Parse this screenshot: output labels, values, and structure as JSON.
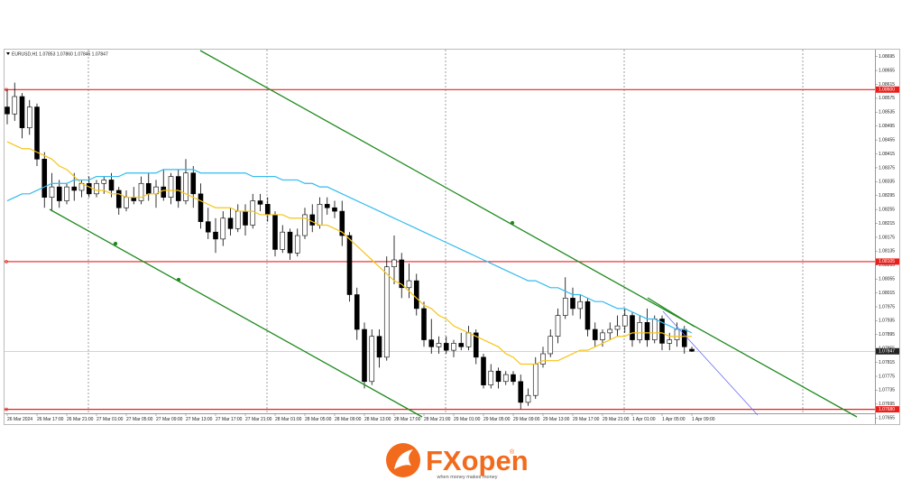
{
  "chart_data": {
    "type": "candlestick",
    "title": "EURUSD,H1  1.07853 1.07860 1.07845 1.07847",
    "categories": [
      "26 Mar 2024",
      null,
      null,
      null,
      "26 Mar 17:00",
      null,
      null,
      null,
      "26 Mar 21:00",
      null,
      null,
      null,
      "27 Mar 01:00",
      null,
      null,
      null,
      "27 Mar 05:00",
      null,
      null,
      null,
      "27 Mar 09:00",
      null,
      null,
      null,
      "27 Mar 13:00",
      null,
      null,
      null,
      "27 Mar 17:00",
      null,
      null,
      null,
      "27 Mar 21:00",
      null,
      null,
      null,
      "28 Mar 01:00",
      null,
      null,
      null,
      "28 Mar 05:00",
      null,
      null,
      null,
      "28 Mar 09:00",
      null,
      null,
      null,
      "28 Mar 13:00",
      null,
      null,
      null,
      "28 Mar 17:00",
      null,
      null,
      null,
      "28 Mar 21:00",
      null,
      null,
      null,
      "29 Mar 01:00",
      null,
      null,
      null,
      "29 Mar 05:00",
      null,
      null,
      null,
      "29 Mar 09:00",
      null,
      null,
      null,
      "29 Mar 13:00",
      null,
      null,
      null,
      "29 Mar 17:00",
      null,
      null,
      null,
      "29 Mar 21:00",
      null,
      null,
      null,
      "1 Apr 01:00",
      null,
      null,
      null,
      "1 Apr 05:00",
      null,
      null,
      null,
      "1 Apr 09:00"
    ],
    "open": [
      1.0855,
      1.0853,
      1.0858,
      1.0849,
      1.0855,
      1.084,
      1.0829,
      1.0832,
      1.0828,
      1.0832,
      1.0831,
      1.0833,
      1.083,
      1.0833,
      1.0834,
      1.0831,
      1.0826,
      1.0829,
      1.0828,
      1.0833,
      1.083,
      1.0832,
      1.0829,
      1.0835,
      1.0828,
      1.0836,
      1.083,
      1.0822,
      1.0819,
      1.0817,
      1.0823,
      1.082,
      1.0825,
      1.0821,
      1.0828,
      1.0827,
      1.0824,
      1.0814,
      1.0819,
      1.0813,
      1.0818,
      1.0824,
      1.0821,
      1.0827,
      1.0826,
      1.0825,
      1.0818,
      1.0801,
      1.0791,
      1.0776,
      1.0789,
      1.0783,
      1.0809,
      1.0811,
      1.0803,
      1.0805,
      1.0797,
      1.0788,
      1.0786,
      1.0787,
      1.0785,
      1.0787,
      1.0786,
      1.079,
      1.0783,
      1.0775,
      1.0779,
      1.0776,
      1.0778,
      1.0776,
      1.077,
      1.0772,
      1.0781,
      1.0784,
      1.0789,
      1.0795,
      1.08,
      1.0797,
      1.0799,
      1.0791,
      1.0788,
      1.079,
      1.0791,
      1.0792,
      1.0795,
      1.0788,
      1.0793,
      1.0788,
      1.0794,
      1.0787,
      1.0788,
      1.0791,
      1.07853
    ],
    "high": [
      1.086,
      1.0862,
      1.0859,
      1.0857,
      1.0856,
      1.0842,
      1.0836,
      1.0834,
      1.0833,
      1.0836,
      1.0834,
      1.0835,
      1.0834,
      1.0835,
      1.0836,
      1.0832,
      1.0831,
      1.0832,
      1.0835,
      1.0836,
      1.0834,
      1.0837,
      1.0836,
      1.0837,
      1.084,
      1.0838,
      1.0833,
      1.0826,
      1.0823,
      1.0825,
      1.0826,
      1.0827,
      1.0827,
      1.083,
      1.083,
      1.0829,
      1.0825,
      1.0821,
      1.082,
      1.082,
      1.0826,
      1.0827,
      1.0829,
      1.0829,
      1.0828,
      1.0828,
      1.0819,
      1.0803,
      1.0793,
      1.0791,
      1.0791,
      1.0812,
      1.0818,
      1.0813,
      1.081,
      1.0807,
      1.0799,
      1.0794,
      1.0789,
      1.0789,
      1.0788,
      1.079,
      1.0792,
      1.0791,
      1.0784,
      1.0781,
      1.078,
      1.0779,
      1.0779,
      1.0778,
      1.0774,
      1.0783,
      1.0786,
      1.0791,
      1.0797,
      1.0806,
      1.0803,
      1.0801,
      1.08,
      1.0793,
      1.0791,
      1.0793,
      1.0795,
      1.0797,
      1.0796,
      1.0795,
      1.0797,
      1.0795,
      1.0795,
      1.079,
      1.0793,
      1.0792,
      1.0786
    ],
    "low": [
      1.085,
      1.0851,
      1.0846,
      1.0847,
      1.0838,
      1.0826,
      1.0825,
      1.0826,
      1.0827,
      1.0828,
      1.0829,
      1.0829,
      1.0829,
      1.083,
      1.0829,
      1.0824,
      1.0825,
      1.0827,
      1.0827,
      1.0828,
      1.0826,
      1.0828,
      1.0827,
      1.0826,
      1.0827,
      1.0826,
      1.082,
      1.0817,
      1.0813,
      1.0815,
      1.0818,
      1.0819,
      1.0818,
      1.082,
      1.0825,
      1.0822,
      1.0812,
      1.0813,
      1.0811,
      1.0812,
      1.0817,
      1.0819,
      1.082,
      1.0824,
      1.0823,
      1.0815,
      1.0799,
      1.0788,
      1.0774,
      1.0775,
      1.078,
      1.0782,
      1.0804,
      1.08,
      1.08,
      1.0795,
      1.0786,
      1.0784,
      1.0784,
      1.0784,
      1.0783,
      1.0785,
      1.0785,
      1.0781,
      1.0774,
      1.0774,
      1.0774,
      1.0775,
      1.0775,
      1.0768,
      1.0769,
      1.0771,
      1.078,
      1.0783,
      1.0787,
      1.0794,
      1.0795,
      1.0794,
      1.0789,
      1.0786,
      1.0786,
      1.0788,
      1.0789,
      1.079,
      1.0786,
      1.0787,
      1.0786,
      1.0787,
      1.0785,
      1.0785,
      1.0786,
      1.0784,
      1.07845
    ],
    "close": [
      1.0853,
      1.0858,
      1.0849,
      1.0855,
      1.084,
      1.0829,
      1.0832,
      1.0828,
      1.0832,
      1.0831,
      1.0833,
      1.083,
      1.0833,
      1.0834,
      1.0831,
      1.0826,
      1.0829,
      1.0828,
      1.0833,
      1.083,
      1.0832,
      1.0829,
      1.0835,
      1.0828,
      1.0836,
      1.083,
      1.0822,
      1.0819,
      1.0817,
      1.0823,
      1.082,
      1.0825,
      1.0821,
      1.0828,
      1.0827,
      1.0824,
      1.0814,
      1.0819,
      1.0813,
      1.0818,
      1.0824,
      1.0821,
      1.0827,
      1.0826,
      1.0825,
      1.0818,
      1.0801,
      1.0791,
      1.0776,
      1.0789,
      1.0783,
      1.0809,
      1.0811,
      1.0803,
      1.0805,
      1.0797,
      1.0788,
      1.0786,
      1.0787,
      1.0785,
      1.0787,
      1.0786,
      1.079,
      1.0783,
      1.0775,
      1.0779,
      1.0776,
      1.0778,
      1.0776,
      1.077,
      1.0772,
      1.0781,
      1.0784,
      1.0789,
      1.0795,
      1.08,
      1.0797,
      1.0799,
      1.0791,
      1.0788,
      1.079,
      1.0791,
      1.0792,
      1.0795,
      1.0788,
      1.0793,
      1.0788,
      1.0794,
      1.0787,
      1.0788,
      1.0791,
      1.0786,
      1.07847
    ],
    "series": [
      {
        "color": "#f5c518",
        "values": [
          1.0845,
          1.0844,
          1.0843,
          1.0843,
          1.0842,
          1.0841,
          1.084,
          1.0838,
          1.0837,
          1.0835,
          1.0833,
          1.0832,
          1.0831,
          1.0831,
          1.083,
          1.083,
          1.0829,
          1.0829,
          1.0829,
          1.083,
          1.083,
          1.0831,
          1.0831,
          1.0831,
          1.083,
          1.0829,
          1.0828,
          1.0827,
          1.0826,
          1.0826,
          1.0826,
          1.0825,
          1.0825,
          1.0825,
          1.0824,
          1.0824,
          1.0824,
          1.0824,
          1.0823,
          1.0823,
          1.0823,
          1.0822,
          1.0821,
          1.0821,
          1.082,
          1.0819,
          1.0817,
          1.0815,
          1.0813,
          1.0811,
          1.0809,
          1.0807,
          1.0805,
          1.0804,
          1.0802,
          1.08,
          1.0798,
          1.0797,
          1.0795,
          1.0794,
          1.0792,
          1.0791,
          1.079,
          1.0789,
          1.0788,
          1.0787,
          1.0786,
          1.0784,
          1.0783,
          1.0781,
          1.0781,
          1.0781,
          1.0782,
          1.0782,
          1.0782,
          1.0783,
          1.0784,
          1.0785,
          1.0785,
          1.0786,
          1.0787,
          1.0788,
          1.0789,
          1.0789,
          1.079,
          1.079,
          1.079,
          1.079,
          1.079,
          1.0789,
          1.0789,
          1.0789,
          1.0789
        ]
      },
      {
        "color": "#33bbee",
        "values": [
          1.0828,
          1.0829,
          1.083,
          1.083,
          1.0831,
          1.0832,
          1.0833,
          1.0833,
          1.0833,
          1.0834,
          1.0834,
          1.0834,
          1.0835,
          1.0835,
          1.0835,
          1.0835,
          1.0836,
          1.0836,
          1.0836,
          1.0836,
          1.0836,
          1.0837,
          1.0837,
          1.0837,
          1.0837,
          1.0837,
          1.0836,
          1.0836,
          1.0836,
          1.0836,
          1.0836,
          1.0836,
          1.0836,
          1.0835,
          1.0835,
          1.0835,
          1.0835,
          1.0834,
          1.0834,
          1.0834,
          1.0833,
          1.0833,
          1.0832,
          1.0832,
          1.0831,
          1.083,
          1.0829,
          1.0828,
          1.0827,
          1.0826,
          1.0825,
          1.0824,
          1.0823,
          1.0822,
          1.0821,
          1.082,
          1.0819,
          1.0818,
          1.0817,
          1.0816,
          1.0815,
          1.0814,
          1.0813,
          1.0812,
          1.0811,
          1.081,
          1.0809,
          1.0808,
          1.0807,
          1.0806,
          1.0805,
          1.0805,
          1.0804,
          1.0803,
          1.0803,
          1.0802,
          1.0801,
          1.0801,
          1.08,
          1.0799,
          1.0799,
          1.0798,
          1.0797,
          1.0797,
          1.0796,
          1.0795,
          1.0794,
          1.0794,
          1.0793,
          1.0792,
          1.0791,
          1.0791,
          1.079
        ]
      }
    ],
    "levels": [
      {
        "value": 1.086,
        "label": "1.08600"
      },
      {
        "value": 1.08105,
        "label": "1.08105"
      },
      {
        "value": 1.0768,
        "label": "1.07680"
      }
    ],
    "level_color": "#e8201c",
    "last_price": 1.07847,
    "ylim": [
      1.0764,
      1.08715
    ],
    "yticks": [
      1.08695,
      1.08655,
      1.08615,
      1.08575,
      1.08535,
      1.08495,
      1.08455,
      1.08415,
      1.08375,
      1.08335,
      1.08295,
      1.08255,
      1.08215,
      1.08175,
      1.08135,
      1.08095,
      1.08055,
      1.08015,
      1.07975,
      1.07935,
      1.07895,
      1.07855,
      1.07815,
      1.07775,
      1.07735,
      1.07695,
      1.07655
    ],
    "bull_color": "#ffffff",
    "bear_color": "#000000"
  },
  "branding": {
    "name": "FXopen",
    "mark": "®",
    "tagline": "when money makes money"
  }
}
